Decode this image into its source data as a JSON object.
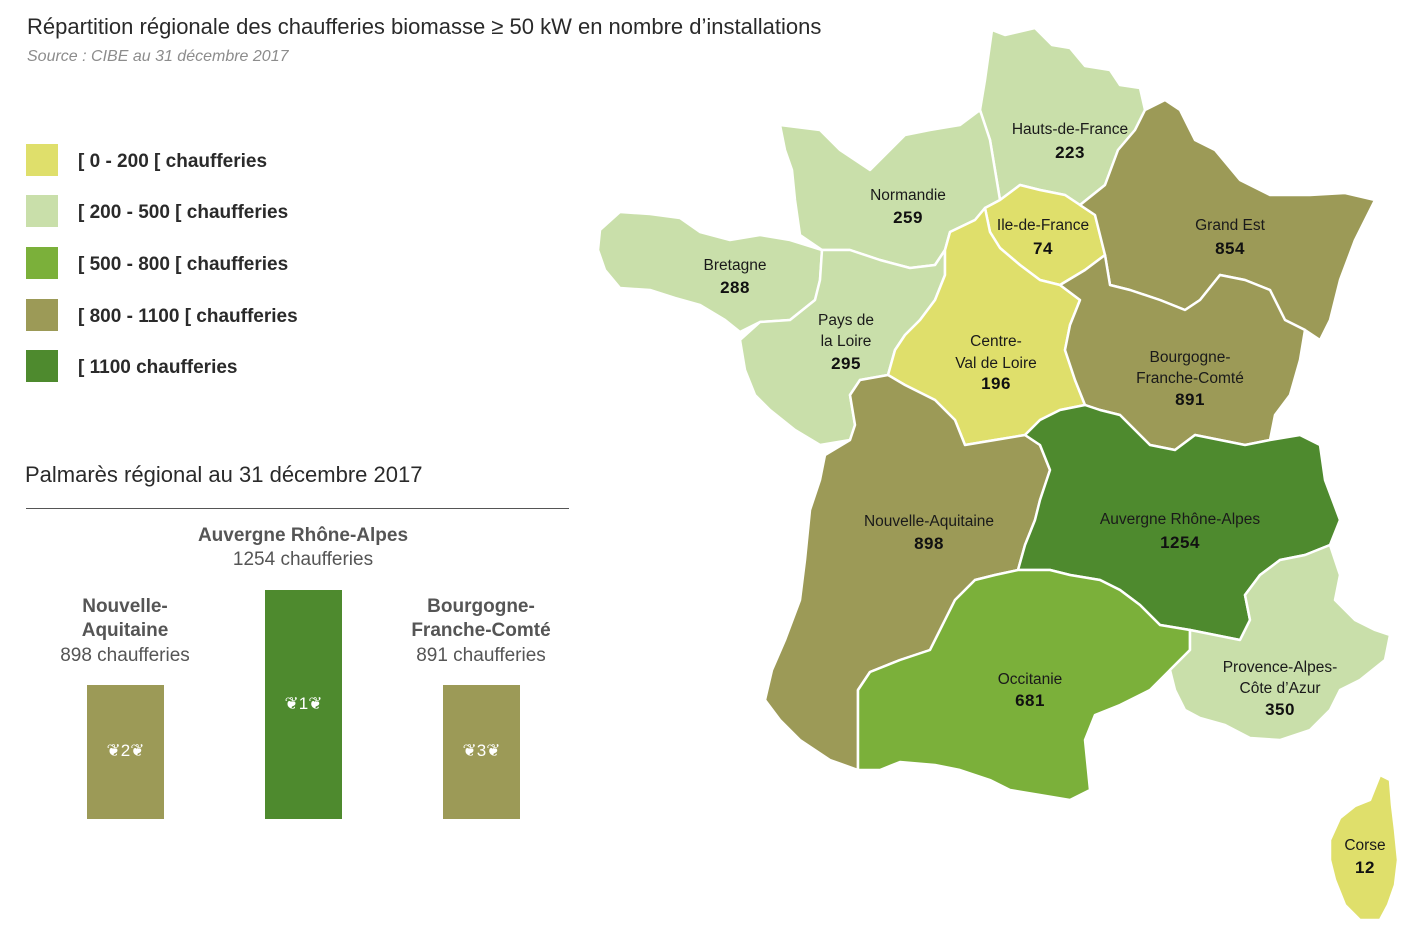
{
  "header": {
    "title": "Répartition régionale des chaufferies biomasse ≥ 50 kW en nombre d’installations",
    "source": "Source : CIBE au 31 décembre 2017"
  },
  "legend": {
    "items": [
      {
        "label": "[ 0 - 200 [ chaufferies",
        "color": "#dfdf6b"
      },
      {
        "label": "[ 200 - 500 [ chaufferies",
        "color": "#c9dfaa"
      },
      {
        "label": "[ 500 - 800 [ chaufferies",
        "color": "#7bb03a"
      },
      {
        "label": "[ 800 - 1100 [ chaufferies",
        "color": "#9c9a57"
      },
      {
        "label": "[ 1100 chaufferies",
        "color": "#4e8a2e"
      }
    ]
  },
  "podium": {
    "title": "Palmarès régional au 31 décembre 2017",
    "first": {
      "name": "Auvergne Rhône-Alpes",
      "count": "1254 chaufferies",
      "rank": "1",
      "color": "#4e8a2e"
    },
    "second": {
      "name_line1": "Nouvelle-",
      "name_line2": "Aquitaine",
      "count": "898 chaufferies",
      "rank": "2",
      "color": "#9c9a57"
    },
    "third": {
      "name_line1": "Bourgogne-",
      "name_line2": "Franche-Comté",
      "count": "891 chaufferies",
      "rank": "3",
      "color": "#9c9a57"
    }
  },
  "map": {
    "regions": [
      {
        "id": "hauts-de-france",
        "name_lines": [
          "Hauts-de-France"
        ],
        "value": "223",
        "color": "#c9dfaa"
      },
      {
        "id": "normandie",
        "name_lines": [
          "Normandie"
        ],
        "value": "259",
        "color": "#c9dfaa"
      },
      {
        "id": "ile-de-france",
        "name_lines": [
          "Ile-de-France"
        ],
        "value": "74",
        "color": "#dfdf6b"
      },
      {
        "id": "grand-est",
        "name_lines": [
          "Grand Est"
        ],
        "value": "854",
        "color": "#9c9a57"
      },
      {
        "id": "bretagne",
        "name_lines": [
          "Bretagne"
        ],
        "value": "288",
        "color": "#c9dfaa"
      },
      {
        "id": "pays-de-la-loire",
        "name_lines": [
          "Pays de",
          "la Loire"
        ],
        "value": "295",
        "color": "#c9dfaa"
      },
      {
        "id": "centre-val-de-loire",
        "name_lines": [
          "Centre-",
          "Val de Loire"
        ],
        "value": "196",
        "color": "#dfdf6b"
      },
      {
        "id": "bourgogne-franche-comte",
        "name_lines": [
          "Bourgogne-",
          "Franche-Comté"
        ],
        "value": "891",
        "color": "#9c9a57"
      },
      {
        "id": "nouvelle-aquitaine",
        "name_lines": [
          "Nouvelle-Aquitaine"
        ],
        "value": "898",
        "color": "#9c9a57"
      },
      {
        "id": "auvergne-rhone-alpes",
        "name_lines": [
          "Auvergne Rhône-Alpes"
        ],
        "value": "1254",
        "color": "#4e8a2e"
      },
      {
        "id": "occitanie",
        "name_lines": [
          "Occitanie"
        ],
        "value": "681",
        "color": "#7bb03a"
      },
      {
        "id": "provence-alpes-cote-d-azur",
        "name_lines": [
          "Provence-Alpes-",
          "Côte d’Azur"
        ],
        "value": "350",
        "color": "#c9dfaa"
      },
      {
        "id": "corse",
        "name_lines": [
          "Corse"
        ],
        "value": "12",
        "color": "#dfdf6b"
      }
    ]
  }
}
